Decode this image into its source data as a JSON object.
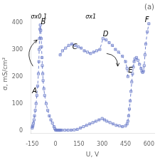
{
  "chart_data": {
    "type": "line",
    "title": "(a)",
    "x_label": "U, V",
    "y_label": "σ, mS/cm²",
    "xlim": [
      -160,
      635
    ],
    "ylim": [
      -10,
      430
    ],
    "xticks": [
      -150,
      0,
      150,
      300,
      450,
      600
    ],
    "yticks": [
      0,
      100,
      200,
      300,
      400
    ],
    "grid": false,
    "marker": "square",
    "line_style": "dashed",
    "series": [
      {
        "color": "#7080cc",
        "x": [
          -150,
          -148,
          -145,
          -142,
          -138,
          -135,
          -130,
          -125,
          -120,
          -115,
          -110,
          -107,
          -105,
          -103,
          -100,
          -98,
          -95,
          -92,
          -90,
          -87,
          -85,
          -82,
          -80,
          -75,
          -70,
          -60,
          -50,
          -40,
          -30,
          -20,
          -10,
          -5,
          0,
          5,
          10,
          15,
          20,
          25,
          30
        ],
        "values": [
          10,
          15,
          20,
          28,
          40,
          55,
          75,
          100,
          130,
          165,
          210,
          255,
          300,
          340,
          375,
          390,
          370,
          340,
          310,
          270,
          240,
          210,
          185,
          155,
          130,
          100,
          75,
          55,
          40,
          28,
          15,
          8,
          3,
          2,
          2,
          2,
          2,
          2,
          2
        ]
      },
      {
        "color": "#7080cc",
        "x": [
          30,
          45,
          65,
          85,
          105,
          125,
          145,
          165,
          185,
          205,
          225,
          245,
          265,
          285,
          305,
          325,
          345,
          365,
          385,
          405,
          430,
          450,
          460,
          465
        ],
        "values": [
          280,
          295,
          305,
          315,
          320,
          315,
          310,
          305,
          295,
          290,
          285,
          290,
          295,
          300,
          340,
          335,
          325,
          315,
          300,
          290,
          275,
          255,
          230,
          200
        ]
      },
      {
        "color": "#7080cc",
        "x": [
          30,
          40,
          60,
          80,
          100,
          120,
          140,
          160,
          180,
          200,
          220,
          240,
          260,
          280,
          300,
          315,
          330,
          350,
          370,
          390,
          410,
          430,
          450,
          460,
          465,
          470,
          475,
          480,
          485,
          490,
          495,
          500,
          505,
          510,
          520,
          530,
          540,
          550,
          555,
          560,
          565,
          570,
          575,
          580,
          590,
          600
        ],
        "values": [
          2,
          2,
          2,
          2,
          2,
          3,
          5,
          10,
          15,
          20,
          25,
          30,
          35,
          40,
          45,
          40,
          35,
          30,
          25,
          20,
          18,
          15,
          18,
          25,
          35,
          55,
          80,
          110,
          145,
          180,
          210,
          235,
          255,
          265,
          270,
          260,
          245,
          230,
          220,
          215,
          220,
          240,
          280,
          320,
          365,
          395
        ]
      }
    ],
    "annotations": [
      {
        "text": "A",
        "x": -150,
        "y": 145
      },
      {
        "text": "B",
        "x": -94,
        "y": 400
      },
      {
        "text": "C",
        "x": 108,
        "y": 308
      },
      {
        "text": "D",
        "x": 305,
        "y": 355
      },
      {
        "text": "E",
        "x": 467,
        "y": 222
      },
      {
        "text": "F",
        "x": 574,
        "y": 408
      },
      {
        "text": "σx0.1",
        "x": -158,
        "y": 420
      },
      {
        "text": "σx1",
        "x": 193,
        "y": 420
      }
    ],
    "arrows": [
      {
        "from": [
          -145,
          238
        ],
        "to": [
          -118,
          335
        ]
      },
      {
        "from": [
          328,
          285
        ],
        "to": [
          400,
          238
        ]
      }
    ]
  }
}
